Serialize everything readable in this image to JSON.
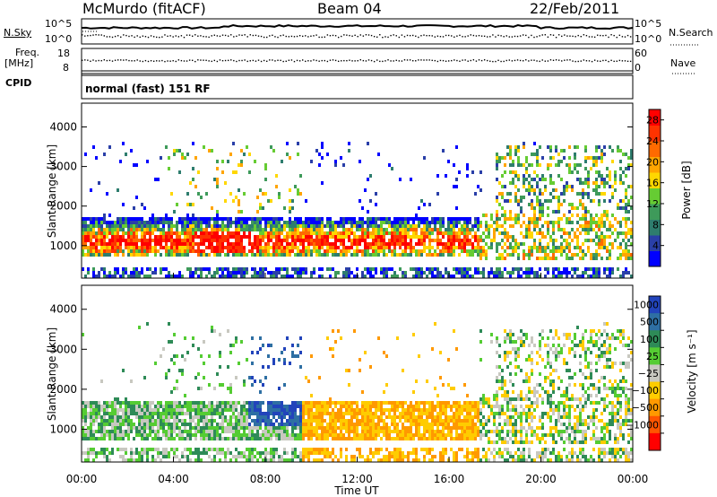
{
  "header": {
    "station": "McMurdo (fitACF)",
    "beam": "Beam 04",
    "date": "22/Feb/2011"
  },
  "side_labels": {
    "nsky": "N.Sky",
    "freq": "Freq.",
    "freq_unit": "[MHz]",
    "cpid": "CPID",
    "nsearch": "N.Search",
    "nave": "Nave"
  },
  "cpid_text": "normal (fast) 151 RF",
  "noise_axis": {
    "left_ticks": [
      "10^5",
      "10^0"
    ],
    "right_ticks": [
      "10^5",
      "10^0"
    ]
  },
  "freq_axis": {
    "left_ticks": [
      "18",
      "8"
    ],
    "right_ticks": [
      "60",
      "0"
    ]
  },
  "colors": {
    "power": [
      "#0000ff",
      "#2a3fa8",
      "#2e7d6e",
      "#3e9a5a",
      "#66cc33",
      "#ffd700",
      "#ffa500",
      "#ff6a00",
      "#ff3300",
      "#ff0000"
    ],
    "velocity": [
      "#2244bb",
      "#2e6fa3",
      "#2e8b57",
      "#55cc33",
      "#c8c8c0",
      "#ffcc00",
      "#ff9900",
      "#ff5500",
      "#ff0000"
    ]
  },
  "chart_data": [
    {
      "type": "heatmap",
      "name": "power",
      "ylabel": "Slant Range [km]",
      "xlabel": "Time UT",
      "x_ticks": [
        "00:00",
        "04:00",
        "08:00",
        "12:00",
        "16:00",
        "20:00",
        "00:00"
      ],
      "y_ticks": [
        1000,
        2000,
        3000,
        4000
      ],
      "ylim": [
        180,
        4600
      ],
      "colorbar": {
        "label": "Power [dB]",
        "ticks": [
          4,
          8,
          12,
          16,
          20,
          24,
          28
        ],
        "range": [
          0,
          30
        ]
      }
    },
    {
      "type": "heatmap",
      "name": "velocity",
      "ylabel": "Slant Range [km]",
      "xlabel": "Time UT",
      "x_ticks": [
        "00:00",
        "04:00",
        "08:00",
        "12:00",
        "16:00",
        "20:00",
        "00:00"
      ],
      "y_ticks": [
        1000,
        2000,
        3000,
        4000
      ],
      "ylim": [
        180,
        4600
      ],
      "colorbar": {
        "label": "Velocity [m s⁻¹]",
        "ticks": [
          "1000",
          "500",
          "100",
          "25",
          "−25",
          "−100",
          "−500",
          "−1000"
        ]
      }
    }
  ]
}
